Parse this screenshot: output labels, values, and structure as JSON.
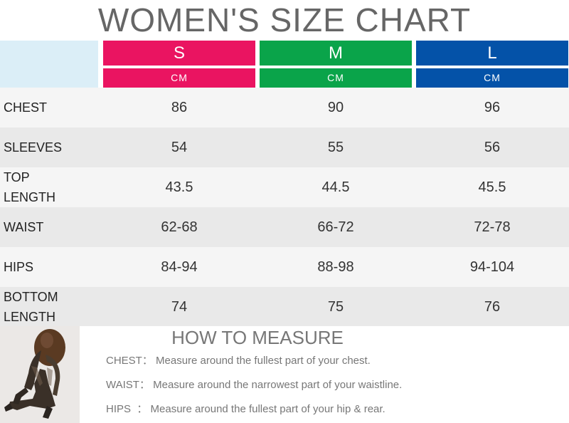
{
  "title": "WOMEN'S SIZE CHART",
  "sizes": [
    {
      "label": "S",
      "unit": "CM",
      "color": "#ea1461"
    },
    {
      "label": "M",
      "unit": "CM",
      "color": "#0aa44a"
    },
    {
      "label": "L",
      "unit": "CM",
      "color": "#0452a8"
    }
  ],
  "rows": [
    {
      "label": "CHEST",
      "s": "86",
      "m": "90",
      "l": "96"
    },
    {
      "label": "SLEEVES",
      "s": "54",
      "m": "55",
      "l": "56"
    },
    {
      "label": "TOP LENGTH",
      "s": "43.5",
      "m": "44.5",
      "l": "45.5"
    },
    {
      "label": "WAIST",
      "s": "62-68",
      "m": "66-72",
      "l": "72-78"
    },
    {
      "label": "HIPS",
      "s": "84-94",
      "m": "88-98",
      "l": "94-104"
    },
    {
      "label": "BOTTOM LENGTH",
      "s": "74",
      "m": "75",
      "l": "76"
    }
  ],
  "how_to_measure": {
    "title": "HOW TO MEASURE",
    "items": [
      {
        "key": "CHEST：",
        "text": "Measure around the fullest part of your chest."
      },
      {
        "key": "WAIST：",
        "text": "Measure around the narrowest part of your waistline."
      },
      {
        "key": "HIPS  ：",
        "text": "Measure around the fullest part of your hip & rear."
      }
    ]
  }
}
